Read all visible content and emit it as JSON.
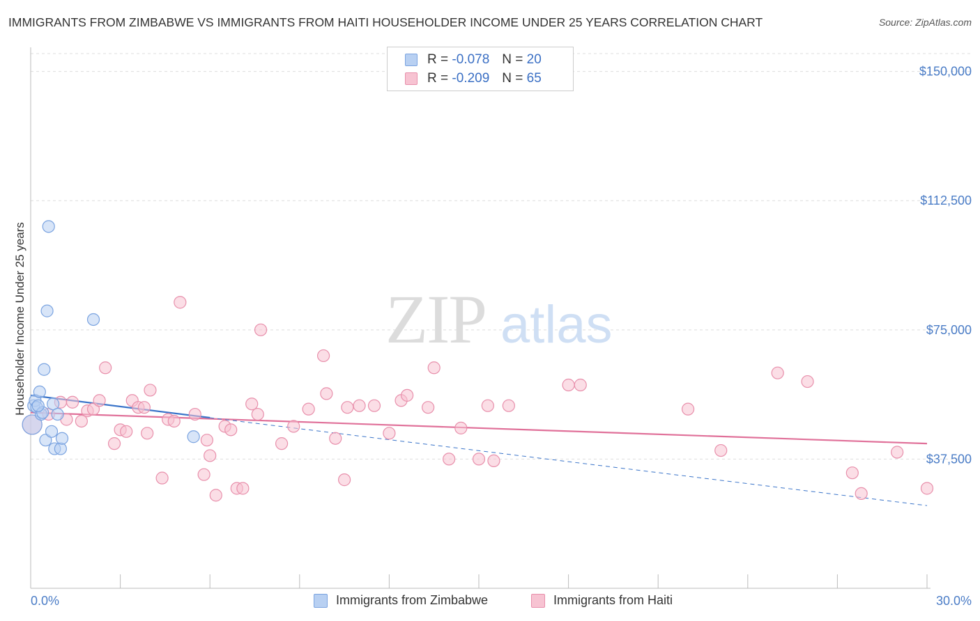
{
  "chart_data": {
    "type": "scatter",
    "title": "IMMIGRANTS FROM ZIMBABWE VS IMMIGRANTS FROM HAITI HOUSEHOLDER INCOME UNDER 25 YEARS CORRELATION CHART",
    "source": "Source: ZipAtlas.com",
    "ylabel": "Householder Income Under 25 years",
    "xlim": [
      0,
      30
    ],
    "ylim": [
      0,
      157000
    ],
    "x_tick_labels": [
      "0.0%",
      "30.0%"
    ],
    "y_ticks": [
      {
        "value": 37500,
        "label": "$37,500"
      },
      {
        "value": 75000,
        "label": "$75,000"
      },
      {
        "value": 112500,
        "label": "$112,500"
      },
      {
        "value": 150000,
        "label": "$150,000"
      }
    ],
    "watermark": {
      "zip": "ZIP",
      "atlas": "atlas"
    },
    "legend": [
      {
        "r_label": "R =",
        "r_value": "-0.078",
        "n_label": "N =",
        "n_value": "20"
      },
      {
        "r_label": "R =",
        "r_value": "-0.209",
        "n_label": "N =",
        "n_value": "65"
      }
    ],
    "series": [
      {
        "name": "Immigrants from Zimbabwe",
        "fill": "#b8d0f2",
        "stroke": "#7aa3e0",
        "line": "#3a74c9",
        "trend": {
          "x0": 0,
          "y0": 56000,
          "x1": 6,
          "y1": 49500,
          "dash_x1": 30,
          "dash_y1": 24000
        },
        "points": [
          [
            0.05,
            47500
          ],
          [
            0.1,
            53000
          ],
          [
            0.15,
            54500
          ],
          [
            0.2,
            52500
          ],
          [
            0.3,
            57000
          ],
          [
            0.35,
            50500
          ],
          [
            0.4,
            51000
          ],
          [
            0.45,
            63500
          ],
          [
            0.5,
            43000
          ],
          [
            0.55,
            80500
          ],
          [
            0.6,
            105000
          ],
          [
            0.7,
            45500
          ],
          [
            0.75,
            53500
          ],
          [
            0.8,
            40500
          ],
          [
            0.9,
            50500
          ],
          [
            1.0,
            40500
          ],
          [
            1.05,
            43500
          ],
          [
            2.1,
            78000
          ],
          [
            5.45,
            44000
          ],
          [
            0.25,
            53000
          ]
        ]
      },
      {
        "name": "Immigrants from Haiti",
        "fill": "#f7c3d2",
        "stroke": "#e88fab",
        "line": "#e07099",
        "trend": {
          "x0": 0,
          "y0": 51000,
          "x1": 30,
          "y1": 42000
        },
        "points": [
          [
            0.05,
            47500
          ],
          [
            0.6,
            50500
          ],
          [
            1.0,
            54000
          ],
          [
            1.2,
            49000
          ],
          [
            1.4,
            54000
          ],
          [
            1.7,
            48500
          ],
          [
            1.9,
            51500
          ],
          [
            2.1,
            52000
          ],
          [
            2.3,
            54500
          ],
          [
            2.5,
            64000
          ],
          [
            2.8,
            42000
          ],
          [
            3.0,
            46000
          ],
          [
            3.2,
            45500
          ],
          [
            3.4,
            54500
          ],
          [
            3.6,
            52500
          ],
          [
            3.8,
            52500
          ],
          [
            3.9,
            45000
          ],
          [
            4.0,
            57500
          ],
          [
            4.4,
            32000
          ],
          [
            4.6,
            49000
          ],
          [
            4.8,
            48500
          ],
          [
            5.0,
            83000
          ],
          [
            5.5,
            50500
          ],
          [
            5.8,
            33000
          ],
          [
            5.9,
            43000
          ],
          [
            6.0,
            38500
          ],
          [
            6.2,
            27000
          ],
          [
            6.5,
            47000
          ],
          [
            6.7,
            46000
          ],
          [
            6.9,
            29000
          ],
          [
            7.1,
            29000
          ],
          [
            7.4,
            53500
          ],
          [
            7.6,
            50500
          ],
          [
            7.7,
            75000
          ],
          [
            8.4,
            42000
          ],
          [
            8.8,
            47000
          ],
          [
            9.3,
            52000
          ],
          [
            9.8,
            67500
          ],
          [
            9.9,
            56500
          ],
          [
            10.2,
            43500
          ],
          [
            10.5,
            31500
          ],
          [
            10.6,
            52500
          ],
          [
            11.0,
            53000
          ],
          [
            11.5,
            53000
          ],
          [
            12.0,
            45000
          ],
          [
            12.4,
            54500
          ],
          [
            12.6,
            56000
          ],
          [
            13.3,
            52500
          ],
          [
            13.5,
            64000
          ],
          [
            14.0,
            37500
          ],
          [
            14.4,
            46500
          ],
          [
            15.0,
            37500
          ],
          [
            15.3,
            53000
          ],
          [
            15.5,
            37000
          ],
          [
            16.0,
            53000
          ],
          [
            18.0,
            59000
          ],
          [
            18.4,
            59000
          ],
          [
            22.0,
            52000
          ],
          [
            23.1,
            40000
          ],
          [
            25.0,
            62500
          ],
          [
            26.0,
            60000
          ],
          [
            27.5,
            33500
          ],
          [
            27.8,
            27500
          ],
          [
            29.0,
            39500
          ],
          [
            30.0,
            29000
          ]
        ]
      }
    ]
  }
}
